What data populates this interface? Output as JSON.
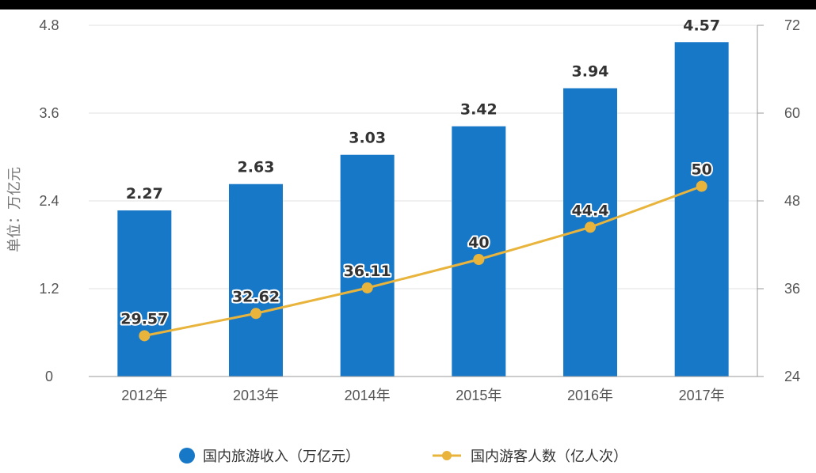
{
  "chart_data": {
    "type": "bar",
    "categories": [
      "2012年",
      "2013年",
      "2014年",
      "2015年",
      "2016年",
      "2017年"
    ],
    "series": [
      {
        "name": "国内旅游收入（万亿元）",
        "type": "bar",
        "axis": "left",
        "color": "#1878c8",
        "values": [
          2.27,
          2.63,
          3.03,
          3.42,
          3.94,
          4.57
        ],
        "labels": [
          "2.27",
          "2.63",
          "3.03",
          "3.42",
          "3.94",
          "4.57"
        ]
      },
      {
        "name": "国内游客人数（亿人次）",
        "type": "line",
        "axis": "right",
        "color": "#e8b43c",
        "values": [
          29.57,
          32.62,
          36.11,
          40,
          44.4,
          50
        ],
        "labels": [
          "29.57",
          "32.62",
          "36.11",
          "40",
          "44.4",
          "50"
        ]
      }
    ],
    "ylabel": "单位：万亿元",
    "ylim": [
      0,
      4.8
    ],
    "y_ticks": [
      "0",
      "1.2",
      "2.4",
      "3.6",
      "4.8"
    ],
    "y2lim": [
      24,
      72
    ],
    "y2_ticks": [
      "24",
      "36",
      "48",
      "60",
      "72"
    ],
    "grid": true,
    "legend_position": "bottom"
  }
}
